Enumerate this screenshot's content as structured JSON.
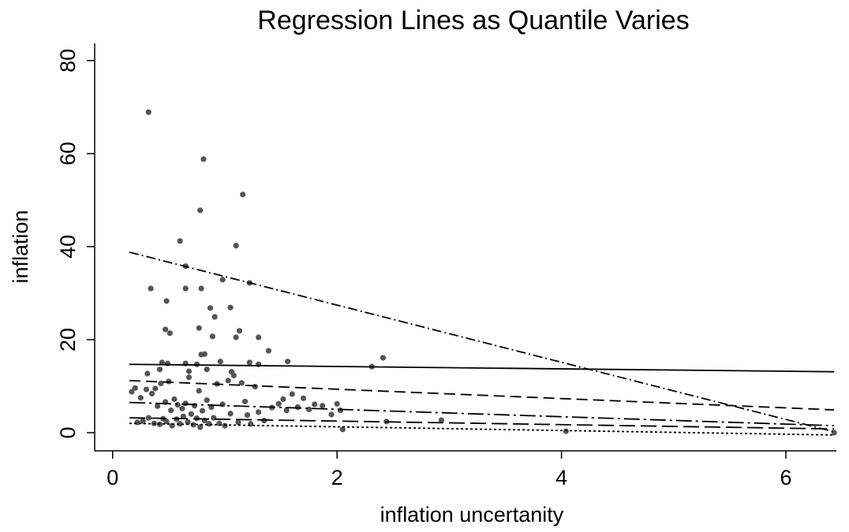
{
  "chart_data": {
    "type": "scatter",
    "title": "Regression Lines as Quantile Varies",
    "x_label": "inflation uncertanity",
    "y_label": "inflation",
    "xlim": [
      -0.16,
      6.45
    ],
    "ylim": [
      -3.9,
      83.7
    ],
    "xticks": [
      0,
      2,
      4,
      6
    ],
    "yticks": [
      0,
      20,
      40,
      60,
      80
    ],
    "series": [
      {
        "type": "scatter",
        "color": "#555555",
        "x": [
          0.32,
          0.81,
          1.16,
          0.78,
          0.6,
          1.1,
          0.65,
          0.98,
          1.22,
          0.34,
          0.65,
          0.79,
          0.87,
          1.05,
          0.91,
          0.48,
          0.77,
          0.47,
          0.51,
          1.13,
          1.1,
          0.89,
          1.3,
          1.39,
          0.79,
          0.82,
          2.41,
          2.31,
          1.56,
          1.22,
          1.3,
          0.44,
          0.49,
          0.65,
          0.75,
          0.96,
          0.42,
          0.68,
          0.84,
          1.06,
          0.31,
          0.17,
          0.2,
          0.22,
          0.25,
          0.27,
          0.3,
          0.32,
          0.35,
          0.37,
          0.38,
          0.4,
          0.42,
          0.43,
          0.45,
          0.47,
          0.48,
          0.5,
          0.52,
          0.53,
          0.55,
          0.57,
          0.58,
          0.6,
          0.62,
          0.63,
          0.65,
          0.67,
          0.68,
          0.7,
          0.72,
          0.73,
          0.75,
          0.77,
          0.78,
          0.8,
          0.82,
          0.84,
          0.86,
          0.88,
          0.9,
          0.93,
          0.95,
          0.98,
          1.0,
          1.03,
          1.05,
          1.08,
          1.12,
          1.15,
          1.18,
          1.2,
          1.23,
          1.27,
          1.3,
          1.35,
          1.42,
          1.48,
          1.52,
          1.55,
          1.6,
          1.65,
          1.7,
          1.75,
          1.8,
          1.87,
          1.95,
          2.0,
          2.03,
          2.05,
          2.44,
          2.93,
          4.04,
          6.43
        ],
        "values": [
          68.9,
          58.8,
          51.2,
          47.8,
          41.2,
          40.2,
          35.8,
          32.9,
          32.2,
          31.0,
          31.0,
          31.0,
          26.8,
          26.9,
          24.9,
          28.3,
          22.5,
          22.2,
          21.4,
          21.9,
          20.5,
          20.7,
          20.5,
          17.6,
          16.8,
          16.9,
          16.1,
          14.2,
          15.3,
          15.1,
          14.7,
          15.1,
          14.9,
          14.9,
          14.7,
          15.3,
          13.6,
          13.2,
          13.6,
          13.1,
          12.7,
          8.8,
          9.6,
          2.2,
          7.5,
          2.5,
          9.3,
          3.2,
          8.4,
          2.0,
          9.5,
          5.7,
          1.8,
          10.6,
          3.0,
          6.6,
          2.4,
          11.0,
          4.8,
          1.5,
          7.2,
          2.9,
          6.0,
          1.9,
          5.2,
          3.5,
          6.3,
          2.3,
          11.9,
          4.0,
          1.7,
          5.8,
          3.1,
          9.0,
          1.2,
          4.7,
          2.6,
          7.0,
          1.9,
          5.5,
          3.2,
          10.5,
          2.0,
          6.1,
          1.5,
          11.2,
          4.1,
          12.3,
          2.2,
          10.7,
          6.7,
          3.8,
          1.9,
          9.9,
          4.4,
          2.6,
          5.4,
          6.2,
          7.2,
          4.8,
          8.3,
          5.5,
          7.4,
          5.0,
          6.1,
          5.8,
          3.9,
          6.2,
          4.8,
          0.7,
          2.4,
          2.7,
          0.3,
          0
        ]
      },
      {
        "type": "line",
        "color": "#000000",
        "dash": "dashdot",
        "x": [
          0.15,
          6.43
        ],
        "values": [
          38.8,
          0.2
        ]
      },
      {
        "type": "line",
        "color": "#000000",
        "dash": "solid",
        "x": [
          0.15,
          6.43
        ],
        "values": [
          14.7,
          13.1
        ]
      },
      {
        "type": "line",
        "color": "#000000",
        "dash": "dash",
        "x": [
          0.15,
          6.43
        ],
        "values": [
          11.2,
          4.9
        ]
      },
      {
        "type": "line",
        "color": "#000000",
        "dash": "longdashdot",
        "x": [
          0.15,
          6.43
        ],
        "values": [
          6.5,
          1.5
        ]
      },
      {
        "type": "line",
        "color": "#000000",
        "dash": "longdash",
        "x": [
          0.15,
          6.43
        ],
        "values": [
          3.2,
          0.8
        ]
      },
      {
        "type": "line",
        "color": "#000000",
        "dash": "dot",
        "x": [
          0.15,
          6.43
        ],
        "values": [
          2.0,
          -0.5
        ]
      }
    ]
  }
}
